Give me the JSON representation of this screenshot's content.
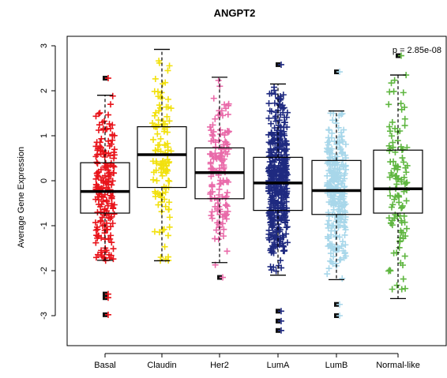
{
  "chart_data": {
    "type": "boxplot",
    "title": "ANGPT2",
    "ylabel": "Average Gene Expression",
    "xlabel": "",
    "ylim": [
      -3.4,
      3.1
    ],
    "yticks": [
      -3,
      -2,
      -1,
      0,
      1,
      2,
      3
    ],
    "annotation": "p = 2.85e-08",
    "grid": false,
    "categories": [
      "Basal",
      "Claudin",
      "Her2",
      "LumA",
      "LumB",
      "Normal-like"
    ],
    "series": [
      {
        "values": {
          "q1": -0.72,
          "median": -0.24,
          "q3": 0.4,
          "whisker_low": -1.77,
          "whisker_high": 1.9,
          "outliers": [
            2.28,
            -2.52,
            -2.6,
            -2.98
          ]
        },
        "color": "#e8141b",
        "n": 190,
        "jitter_min": -1.8,
        "jitter_max": 2.0
      },
      {
        "values": {
          "q1": -0.15,
          "median": 0.58,
          "q3": 1.2,
          "whisker_low": -1.78,
          "whisker_high": 2.92,
          "outliers": []
        },
        "color": "#f2e10f",
        "n": 120,
        "jitter_min": -1.8,
        "jitter_max": 2.95
      },
      {
        "values": {
          "q1": -0.4,
          "median": 0.18,
          "q3": 0.73,
          "whisker_low": -1.82,
          "whisker_high": 2.3,
          "outliers": [
            -2.15
          ]
        },
        "color": "#e96aa9",
        "n": 140,
        "jitter_min": -1.9,
        "jitter_max": 2.3
      },
      {
        "values": {
          "q1": -0.66,
          "median": -0.05,
          "q3": 0.52,
          "whisker_low": -2.1,
          "whisker_high": 2.15,
          "outliers": [
            2.58,
            -2.9,
            -3.12,
            -3.33
          ]
        },
        "color": "#1f2a80",
        "n": 420,
        "jitter_min": -2.1,
        "jitter_max": 2.15
      },
      {
        "values": {
          "q1": -0.75,
          "median": -0.22,
          "q3": 0.45,
          "whisker_low": -2.2,
          "whisker_high": 1.55,
          "outliers": [
            2.42,
            -2.75,
            -3.0
          ]
        },
        "color": "#a8d7ea",
        "n": 260,
        "jitter_min": -2.2,
        "jitter_max": 1.55
      },
      {
        "values": {
          "q1": -0.72,
          "median": -0.18,
          "q3": 0.68,
          "whisker_low": -2.62,
          "whisker_high": 2.35,
          "outliers": [
            2.78
          ]
        },
        "color": "#5fb640",
        "n": 110,
        "jitter_min": -2.6,
        "jitter_max": 2.4
      }
    ]
  }
}
